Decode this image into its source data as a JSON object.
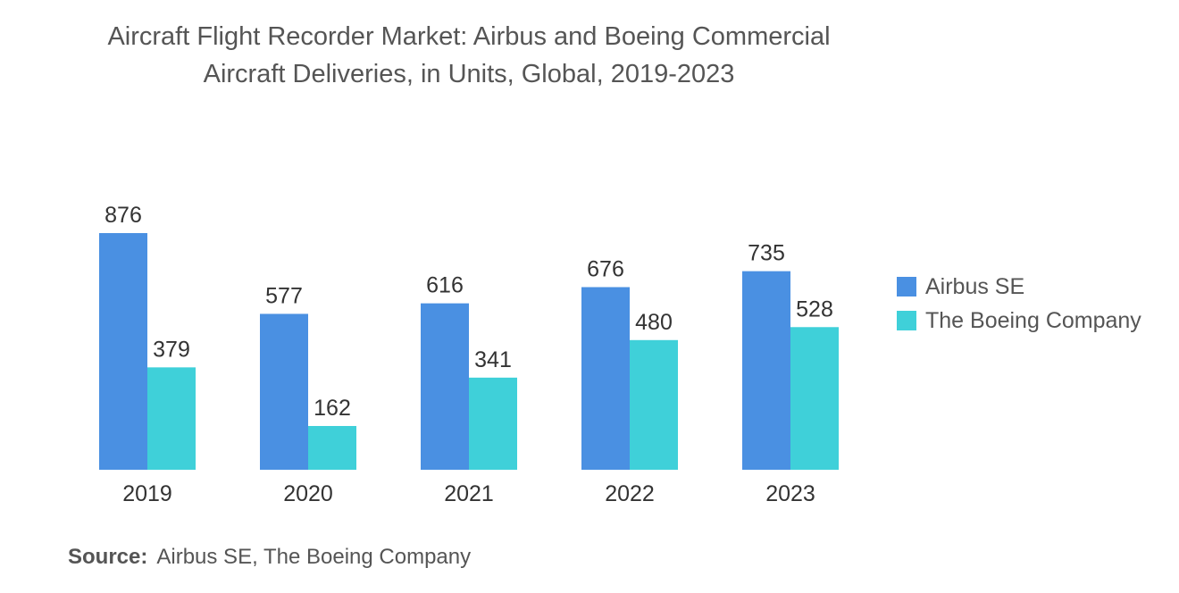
{
  "title": {
    "line1": "Aircraft Flight Recorder Market: Airbus and Boeing Commercial",
    "line2": "Aircraft Deliveries, in Units, Global, 2019-2023"
  },
  "source": {
    "label": "Source:",
    "text": "Airbus SE, The Boeing Company"
  },
  "chart_data": {
    "type": "bar",
    "title": "Aircraft Flight Recorder Market: Airbus and Boeing Commercial Aircraft Deliveries, in Units, Global, 2019-2023",
    "categories": [
      "2019",
      "2020",
      "2021",
      "2022",
      "2023"
    ],
    "series": [
      {
        "name": "Airbus SE",
        "color": "#4a90e2",
        "values": [
          876,
          577,
          616,
          676,
          735
        ]
      },
      {
        "name": "The Boeing Company",
        "color": "#3fd0d9",
        "values": [
          379,
          162,
          341,
          480,
          528
        ]
      }
    ],
    "xlabel": "",
    "ylabel": "",
    "ylim": [
      0,
      876
    ],
    "grid": false,
    "legend_position": "right"
  }
}
